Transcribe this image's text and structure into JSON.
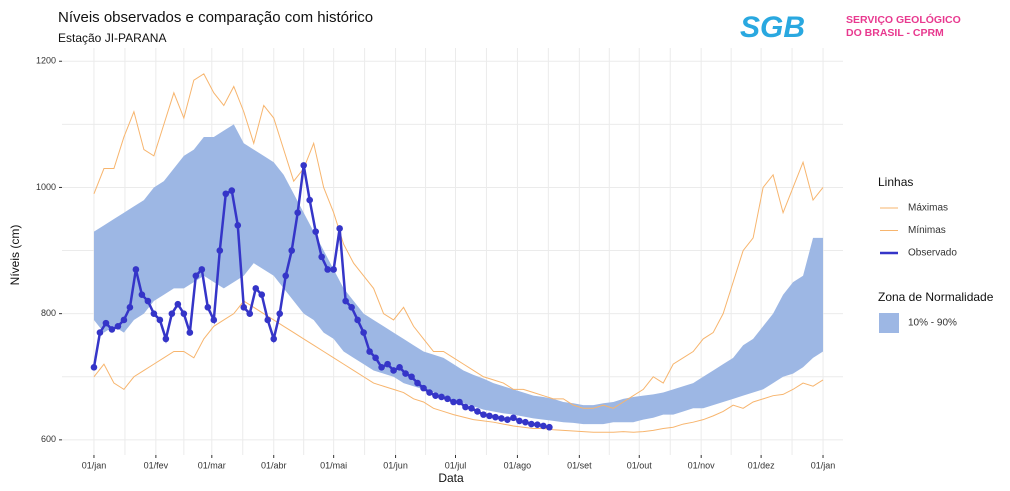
{
  "chart_data": {
    "type": "line",
    "title": "Níveis observados e comparação com histórico",
    "subtitle": "Estação JI-PARANA",
    "logo": {
      "mark": "SGB",
      "line1": "SERVIÇO GEOLÓGICO",
      "line2": "DO BRASIL - CPRM"
    },
    "x_label": "Data",
    "y_label": "Níveis (cm)",
    "xlim": [
      -16,
      375
    ],
    "ylim": [
      576,
      1221
    ],
    "xticks": [
      {
        "value": 0,
        "label": "01/jan"
      },
      {
        "value": 31,
        "label": "01/fev"
      },
      {
        "value": 59,
        "label": "01/mar"
      },
      {
        "value": 90,
        "label": "01/abr"
      },
      {
        "value": 120,
        "label": "01/mai"
      },
      {
        "value": 151,
        "label": "01/jun"
      },
      {
        "value": 181,
        "label": "01/jul"
      },
      {
        "value": 212,
        "label": "01/ago"
      },
      {
        "value": 243,
        "label": "01/set"
      },
      {
        "value": 273,
        "label": "01/out"
      },
      {
        "value": 304,
        "label": "01/nov"
      },
      {
        "value": 334,
        "label": "01/dez"
      },
      {
        "value": 365,
        "label": "01/jan"
      }
    ],
    "yticks": [
      600,
      800,
      1000,
      1200
    ],
    "grid": true,
    "legend_title": "Linhas",
    "band_legend_title": "Zona de Normalidade",
    "x": [
      0,
      5,
      10,
      15,
      20,
      25,
      30,
      35,
      40,
      45,
      50,
      55,
      60,
      65,
      70,
      75,
      80,
      85,
      90,
      95,
      100,
      105,
      110,
      115,
      120,
      125,
      130,
      135,
      140,
      145,
      150,
      155,
      160,
      165,
      170,
      175,
      180,
      185,
      190,
      195,
      200,
      205,
      210,
      215,
      220,
      225,
      230,
      235,
      240,
      245,
      250,
      255,
      260,
      265,
      270,
      275,
      280,
      285,
      290,
      295,
      300,
      305,
      310,
      315,
      320,
      325,
      330,
      335,
      340,
      345,
      350,
      355,
      360,
      365
    ],
    "band": {
      "name": "10% - 90%",
      "color": "#9db7e4",
      "lower": [
        790,
        770,
        780,
        770,
        790,
        800,
        820,
        830,
        840,
        840,
        850,
        860,
        850,
        840,
        850,
        860,
        880,
        870,
        860,
        840,
        820,
        800,
        790,
        770,
        760,
        740,
        730,
        720,
        710,
        705,
        700,
        690,
        685,
        680,
        675,
        668,
        662,
        658,
        653,
        648,
        645,
        642,
        640,
        637,
        634,
        632,
        630,
        628,
        627,
        625,
        625,
        625,
        628,
        628,
        628,
        632,
        635,
        640,
        640,
        645,
        650,
        650,
        655,
        660,
        665,
        670,
        675,
        680,
        690,
        700,
        705,
        715,
        730,
        740
      ],
      "upper": [
        930,
        940,
        950,
        960,
        970,
        980,
        1000,
        1010,
        1030,
        1050,
        1060,
        1080,
        1080,
        1090,
        1100,
        1070,
        1060,
        1050,
        1040,
        1020,
        990,
        960,
        930,
        900,
        870,
        840,
        820,
        800,
        790,
        780,
        770,
        760,
        750,
        740,
        735,
        730,
        720,
        710,
        703,
        697,
        690,
        685,
        680,
        675,
        670,
        668,
        665,
        660,
        658,
        655,
        655,
        658,
        660,
        665,
        668,
        670,
        672,
        675,
        680,
        685,
        690,
        700,
        710,
        720,
        730,
        750,
        760,
        780,
        800,
        830,
        850,
        860,
        920,
        920
      ]
    },
    "series": [
      {
        "name": "Máximas",
        "color": "#f7b56e",
        "values": [
          990,
          1030,
          1030,
          1080,
          1120,
          1060,
          1050,
          1100,
          1150,
          1110,
          1170,
          1180,
          1150,
          1130,
          1160,
          1120,
          1070,
          1130,
          1110,
          1060,
          1010,
          1030,
          1070,
          1000,
          960,
          910,
          880,
          860,
          840,
          800,
          790,
          810,
          780,
          760,
          740,
          740,
          730,
          720,
          710,
          700,
          695,
          690,
          680,
          680,
          675,
          670,
          665,
          665,
          655,
          650,
          650,
          655,
          650,
          660,
          670,
          680,
          700,
          690,
          720,
          730,
          740,
          760,
          770,
          800,
          850,
          900,
          920,
          1000,
          1020,
          960,
          1000,
          1040,
          980,
          1000
        ]
      },
      {
        "name": "Mínimas",
        "color": "#f7b56e",
        "values": [
          700,
          720,
          690,
          680,
          700,
          710,
          720,
          730,
          740,
          740,
          730,
          760,
          780,
          790,
          800,
          820,
          810,
          800,
          790,
          780,
          770,
          760,
          750,
          740,
          730,
          720,
          710,
          700,
          690,
          685,
          680,
          675,
          665,
          660,
          650,
          645,
          640,
          636,
          632,
          630,
          628,
          625,
          622,
          620,
          618,
          618,
          616,
          615,
          614,
          613,
          612,
          612,
          612,
          613,
          612,
          613,
          615,
          618,
          620,
          625,
          628,
          632,
          638,
          645,
          655,
          650,
          660,
          665,
          670,
          672,
          680,
          690,
          685,
          695
        ]
      },
      {
        "name": "Observado",
        "color": "#3535c8",
        "x": [
          0,
          3,
          6,
          9,
          12,
          15,
          18,
          21,
          24,
          27,
          30,
          33,
          36,
          39,
          42,
          45,
          48,
          51,
          54,
          57,
          60,
          63,
          66,
          69,
          72,
          75,
          78,
          81,
          84,
          87,
          90,
          93,
          96,
          99,
          102,
          105,
          108,
          111,
          114,
          117,
          120,
          123,
          126,
          129,
          132,
          135,
          138,
          141,
          144,
          147,
          150,
          153,
          156,
          159,
          162,
          165,
          168,
          171,
          174,
          177,
          180,
          183,
          186,
          189,
          192,
          195,
          198,
          201,
          204,
          207,
          210,
          213,
          216,
          219,
          222,
          225,
          228
        ],
        "values": [
          715,
          770,
          785,
          775,
          780,
          790,
          810,
          870,
          830,
          820,
          800,
          790,
          760,
          800,
          815,
          800,
          770,
          860,
          870,
          810,
          790,
          900,
          990,
          995,
          940,
          810,
          800,
          840,
          830,
          790,
          760,
          800,
          860,
          900,
          960,
          1035,
          980,
          930,
          890,
          870,
          870,
          935,
          820,
          810,
          790,
          770,
          740,
          730,
          715,
          720,
          710,
          715,
          705,
          700,
          690,
          682,
          675,
          670,
          668,
          665,
          660,
          660,
          652,
          650,
          645,
          640,
          638,
          636,
          634,
          632,
          635,
          630,
          628,
          625,
          624,
          622,
          620
        ]
      }
    ]
  }
}
